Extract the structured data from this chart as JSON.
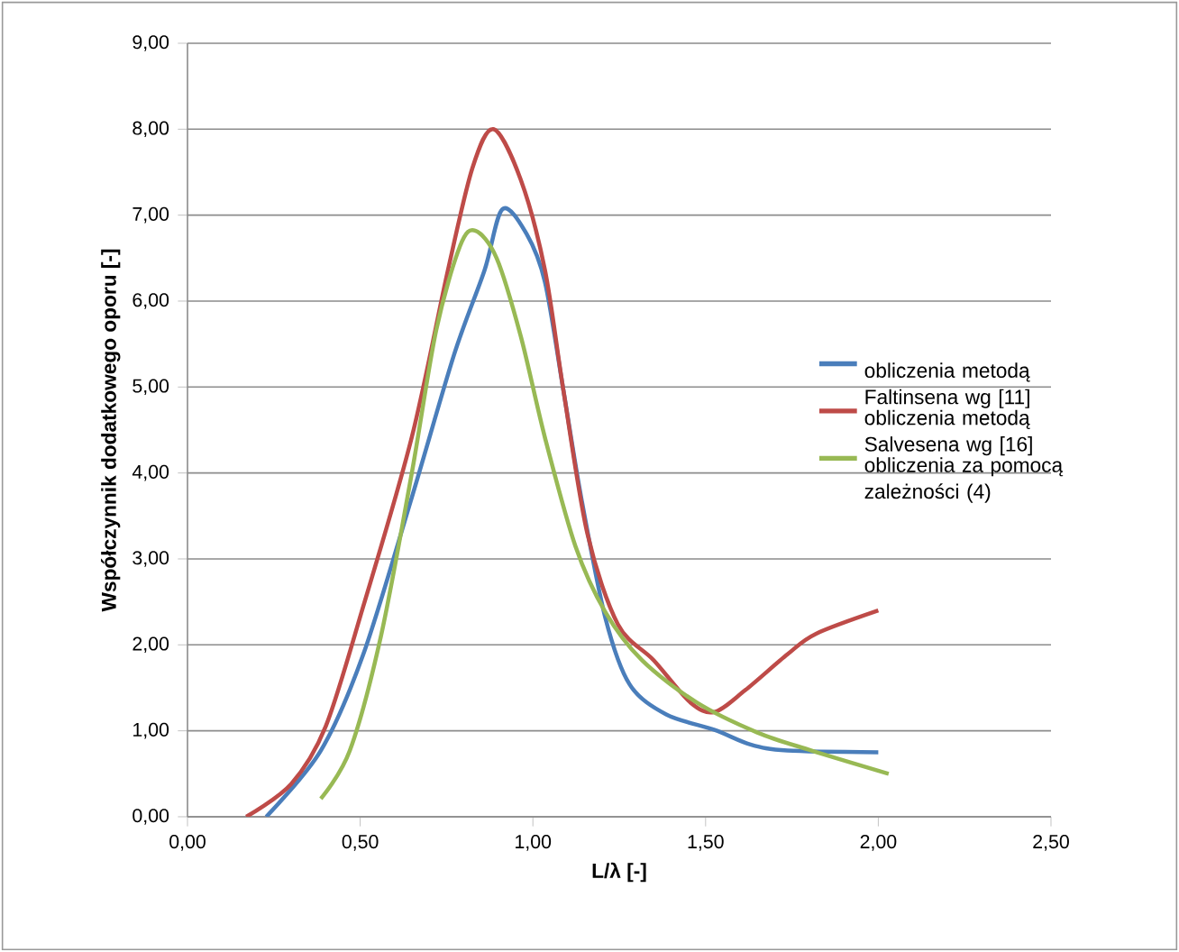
{
  "chart_data": {
    "type": "line",
    "xlabel": "L/λ [-]",
    "ylabel": "Współczynnik dodatkowego oporu [-]",
    "xlim": [
      0,
      2.5
    ],
    "ylim": [
      0,
      9
    ],
    "xticks": [
      {
        "value": 0,
        "label": "0,00"
      },
      {
        "value": 0.5,
        "label": "0,50"
      },
      {
        "value": 1,
        "label": "1,00"
      },
      {
        "value": 1.5,
        "label": "1,50"
      },
      {
        "value": 2,
        "label": "2,00"
      },
      {
        "value": 2.5,
        "label": "2,50"
      }
    ],
    "yticks": [
      {
        "value": 0,
        "label": "0,00"
      },
      {
        "value": 1,
        "label": "1,00"
      },
      {
        "value": 2,
        "label": "2,00"
      },
      {
        "value": 3,
        "label": "3,00"
      },
      {
        "value": 4,
        "label": "4,00"
      },
      {
        "value": 5,
        "label": "5,00"
      },
      {
        "value": 6,
        "label": "6,00"
      },
      {
        "value": 7,
        "label": "7,00"
      },
      {
        "value": 8,
        "label": "8,00"
      },
      {
        "value": 9,
        "label": "9,00"
      }
    ],
    "grid": "y",
    "legend": "right",
    "series": [
      {
        "name": "obliczenia metodą Faltinsena wg [11]",
        "color": "#4a7ebb",
        "x": [
          0.228,
          0.386,
          0.509,
          0.649,
          0.772,
          0.86,
          0.912,
          0.982,
          1.035,
          1.088,
          1.14,
          1.21,
          1.28,
          1.386,
          1.526,
          1.63,
          1.737,
          2.0
        ],
        "values": [
          0,
          0.77,
          1.89,
          3.71,
          5.38,
          6.36,
          7.07,
          6.78,
          6.22,
          4.97,
          3.71,
          2.31,
          1.54,
          1.19,
          1.01,
          0.84,
          0.77,
          0.75
        ]
      },
      {
        "name": "obliczenia metodą Salvesena wg [16]",
        "color": "#be4b48",
        "x": [
          0.17,
          0.3,
          0.4,
          0.509,
          0.649,
          0.754,
          0.825,
          0.886,
          0.965,
          1.035,
          1.088,
          1.158,
          1.246,
          1.35,
          1.456,
          1.526,
          1.614,
          1.737,
          1.82,
          2.0
        ],
        "values": [
          0,
          0.38,
          1.05,
          2.45,
          4.41,
          6.36,
          7.55,
          8.0,
          7.41,
          6.36,
          4.97,
          3.29,
          2.24,
          1.82,
          1.33,
          1.22,
          1.47,
          1.89,
          2.13,
          2.4
        ]
      },
      {
        "name": "obliczenia za pomocą zależności (4)",
        "color": "#98b954",
        "x": [
          0.386,
          0.47,
          0.56,
          0.649,
          0.72,
          0.789,
          0.833,
          0.895,
          0.965,
          1.035,
          1.123,
          1.21,
          1.316,
          1.474,
          1.65,
          1.807,
          2.03
        ],
        "values": [
          0.21,
          0.77,
          2.1,
          3.99,
          5.66,
          6.64,
          6.82,
          6.5,
          5.59,
          4.41,
          3.15,
          2.38,
          1.82,
          1.33,
          0.98,
          0.77,
          0.5
        ]
      }
    ]
  }
}
